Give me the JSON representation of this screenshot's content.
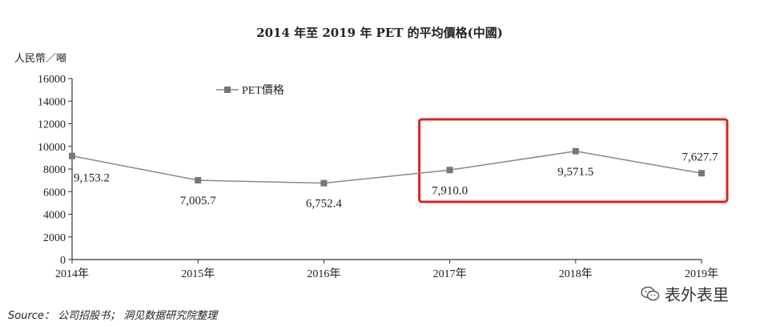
{
  "chart_data": {
    "type": "line",
    "title": "2014 年至 2019 年 PET 的平均價格(中國)",
    "ylabel": "人民幣／噸",
    "ylim": [
      0,
      16000
    ],
    "yticks": [
      "0",
      "2000",
      "4000",
      "6000",
      "8000",
      "10000",
      "12000",
      "14000",
      "16000"
    ],
    "categories": [
      "2014年",
      "2015年",
      "2016年",
      "2017年",
      "2018年",
      "2019年"
    ],
    "series": [
      {
        "name": "PET價格",
        "values": [
          9153.2,
          7005.7,
          6752.4,
          7910.0,
          9571.5,
          7627.7
        ],
        "labels": [
          "9,153.2",
          "7,005.7",
          "6,752.4",
          "7,910.0",
          "9,571.5",
          "7,627.7"
        ]
      }
    ],
    "legend_position": "top-left",
    "grid": false,
    "highlight": {
      "from": "2017年",
      "to": "2019年",
      "color": "#e02020"
    },
    "line_color": "#888888"
  },
  "source": "Source： 公司招股书； 洞见数据研究院整理",
  "watermark": "表外表里"
}
